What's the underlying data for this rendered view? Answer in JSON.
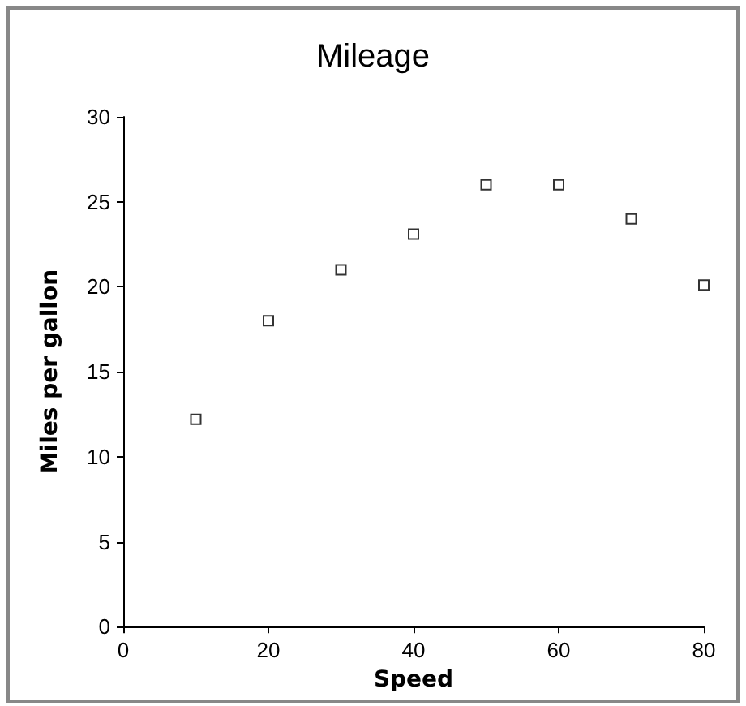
{
  "chart_data": {
    "type": "scatter",
    "title": "Mileage",
    "xlabel": "Speed",
    "ylabel": "Miles per gallon",
    "x": [
      10,
      20,
      30,
      40,
      50,
      60,
      70,
      80
    ],
    "series": [
      {
        "color": "#000000",
        "values": [
          12.2,
          18,
          21,
          23.1,
          26,
          26,
          24,
          20.1
        ]
      }
    ],
    "xlim": [
      0,
      80
    ],
    "xticks": [
      0,
      20,
      40,
      60,
      80
    ],
    "ylim": [
      0,
      30
    ],
    "yticks": [
      0,
      5,
      10,
      15,
      20,
      25,
      30
    ],
    "grid": false,
    "marker": "square"
  }
}
